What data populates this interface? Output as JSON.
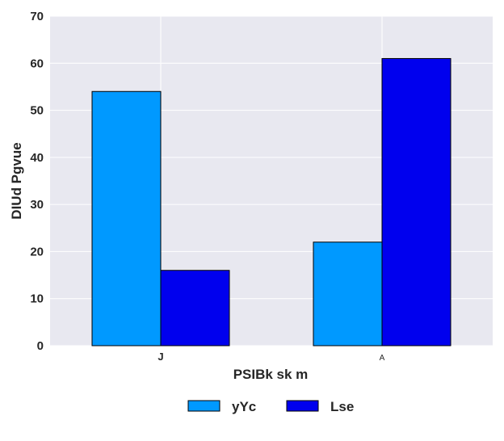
{
  "chart_data": {
    "type": "bar",
    "categories": [
      "J",
      "A"
    ],
    "series": [
      {
        "name": "yYc",
        "values": [
          54,
          22
        ],
        "color": "#0099FF"
      },
      {
        "name": "Lse",
        "values": [
          16,
          61
        ],
        "color": "#0000EE"
      }
    ],
    "xlabel": "PSIBk sk  m",
    "ylabel": "DIUd Pgvue",
    "ylim": [
      0,
      70
    ],
    "yticks": [
      0,
      10,
      20,
      30,
      40,
      50,
      60,
      70
    ],
    "grid": true,
    "legend_position": "bottom-center",
    "background_color": "#E8E8F0",
    "grid_color": "#FFFFFF"
  }
}
